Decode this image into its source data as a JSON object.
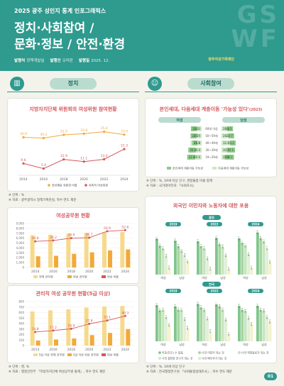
{
  "header": {
    "superscript": "2025 광주 성인지 통계 인포그래픽스",
    "title_line1": "정치·사회참여 /",
    "title_line2": "문화·정보 / 안전·환경",
    "meta": [
      {
        "label": "발행처",
        "value": "정책개발실"
      },
      {
        "label": "발행인",
        "value": "오미란"
      },
      {
        "label": "발행일",
        "value": "2025. 12."
      }
    ],
    "logo_text": "광주여성가족재단",
    "deco_letters": "G S W F"
  },
  "sections": {
    "left_label": "정치",
    "right_label": "사회참여",
    "left_icon": "building-icon",
    "right_icon": "people-icon"
  },
  "colors": {
    "teal": "#2f9a8e",
    "orange": "#f2a93b",
    "red": "#d4585b",
    "green": "#4caf7d"
  },
  "chart_local": {
    "title": "지방자치단체 위원회의 여성위원 참여현황",
    "legend": [
      "양성평등 위원회 비율",
      "위촉직 여성위원"
    ],
    "unit_note": "단위 : %",
    "source_note": "자료 : 광주광역시 정책기획관실, 학수 연도 재분",
    "chart_data": {
      "type": "line",
      "categories": [
        "2014",
        "2016",
        "2018",
        "2020",
        "2022",
        "2024"
      ],
      "series": [
        {
          "name": "양성평등 위원회 비율",
          "values": [
            30.9,
            30.2,
            32.9,
            33.8,
            35.4,
            33.0
          ]
        },
        {
          "name": "위촉직 여성위원",
          "values": [
            9.6,
            5.4,
            12.9,
            11.1,
            13.0,
            21.3
          ]
        }
      ],
      "ylim": [
        0,
        45
      ]
    }
  },
  "chart_officials": {
    "title": "여성공무원 현황",
    "legend": [
      "전체 공무원",
      "여성 공무원",
      "여성 비율"
    ],
    "chart_data": {
      "type": "bar",
      "categories": [
        "2014",
        "2016",
        "2018",
        "2020",
        "2022",
        "2024"
      ],
      "series": [
        {
          "name": "전체 공무원",
          "values": [
            6600,
            6700,
            6900,
            7100,
            7200,
            7300
          ]
        },
        {
          "name": "여성 공무원",
          "values": [
            2300,
            2400,
            2800,
            3100,
            3500,
            3700
          ]
        },
        {
          "name": "여성 비율",
          "values": [
            34.8,
            36.2,
            39.9,
            40.7,
            50.9,
            52.6
          ]
        }
      ],
      "ylim": [
        0,
        9000
      ],
      "yticks": [
        "0",
        "1,000",
        "2,000",
        "3,000",
        "4,000",
        "5,000",
        "6,000",
        "7,000",
        "8,000",
        "9,000"
      ]
    }
  },
  "chart_managers": {
    "title": "관리직 여성 공무원 현황(5급 이상)",
    "legend": [
      "5급 이상 전체 공무원",
      "5급 이상 여성 공무원",
      "여성 비율"
    ],
    "unit_note": "단위 : 명, %",
    "source_note": "자료 : 행정안전부 「지방자치단체 여성공무원 통계」, 학수 연도 재분",
    "chart_data": {
      "type": "bar",
      "categories": [
        "2014",
        "2016",
        "2018",
        "2020",
        "2022",
        "2024"
      ],
      "series": [
        {
          "name": "5급 이상 전체 공무원",
          "values": [
            620,
            640,
            660,
            690,
            710,
            720
          ]
        },
        {
          "name": "5급 이상 여성 공무원",
          "values": [
            90,
            110,
            130,
            190,
            230,
            300
          ]
        },
        {
          "name": "여성 비율",
          "values": [
            14.8,
            17.2,
            19.9,
            27.8,
            33.1,
            40.3
          ]
        }
      ],
      "ylim": [
        0,
        800
      ],
      "yticks": [
        "0",
        "100",
        "200",
        "300",
        "400",
        "500",
        "600",
        "700",
        "800"
      ]
    }
  },
  "chart_mobility": {
    "title": "본인세대, 다음세대 계층이동 '가능성 있다'",
    "title_suffix": "(2023)",
    "group_labels": [
      "여성",
      "남성"
    ],
    "age_labels": [
      "60대 이상",
      "50~59세",
      "40~49세",
      "30~39세",
      "19~29세"
    ],
    "legend": [
      "본인세대 계층이동 가능성",
      "다음세대 계층이동 가능성"
    ],
    "unit_note": "단위 : %, 19세 이상 인구, 경청불참 비율 합계",
    "source_note": "자료 : 국가데이터처 「사회조사」",
    "chart_data": {
      "type": "bar",
      "categories": [
        "60대 이상",
        "50~59세",
        "40~49세",
        "30~39세",
        "19~29세"
      ],
      "series": [
        {
          "name": "여성 본인세대",
          "values": [
            24.3,
            24.7,
            21.3,
            30.2,
            32.8
          ]
        },
        {
          "name": "여성 다음세대",
          "values": [
            24.3,
            25.9,
            25.0,
            30.0,
            30.6
          ]
        },
        {
          "name": "남성 본인세대",
          "values": [
            24.3,
            22.7,
            23.2,
            34.1,
            38.1
          ]
        },
        {
          "name": "남성 다음세대",
          "values": [
            26.0,
            28.7,
            32.0,
            30.7,
            28.2
          ]
        }
      ]
    }
  },
  "chart_migrants": {
    "title": "외국인 이민자와 노동자에 대한 포용",
    "panels": [
      {
        "region": "광주",
        "years": [
          "2019",
          "2022",
          "2024"
        ]
      },
      {
        "region": "전국",
        "years": [
          "2019",
          "2022",
          "2024"
        ]
      }
    ],
    "x_labels": [
      "여성",
      "남성"
    ],
    "legend": [
      "이웃(친구) 수 없음",
      "나의 이웃이 되는 것",
      "나의 직장동료가 되는 것",
      "나의 절친한 친구가 되는 것",
      "나의 배우자가 되는 것"
    ],
    "unit_note": "단위 : %, 19세 이상 인구",
    "source_note": "자료 : 한국행정연구원 「사회통합실태조사」, 학수 연도 재분",
    "chart_data": {
      "type": "bar",
      "series": [
        {
          "name": "광주 2019 여성",
          "values": [
            65.1,
            52.2,
            47.3,
            33.4,
            12.4
          ]
        },
        {
          "name": "광주 2019 남성",
          "values": [
            61.4,
            51.4,
            43.1,
            35.2,
            23.7
          ]
        },
        {
          "name": "광주 2022 여성",
          "values": [
            60.3,
            51.2,
            47.4,
            29.0,
            10.4
          ]
        },
        {
          "name": "광주 2022 남성",
          "values": [
            66.4,
            55.0,
            50.6,
            35.0,
            10.0
          ]
        },
        {
          "name": "광주 2024 여성",
          "values": [
            65.7,
            57.7,
            52.7,
            36.5,
            12.0
          ]
        },
        {
          "name": "광주 2024 남성",
          "values": [
            76.4,
            65.8,
            60.1,
            47.7,
            23.1
          ]
        },
        {
          "name": "전국 2019 여성",
          "values": [
            65.5,
            56.0,
            57.3,
            43.3,
            29.7
          ]
        },
        {
          "name": "전국 2019 남성",
          "values": [
            63.3,
            57.3,
            57.1,
            40.2,
            23.8
          ]
        },
        {
          "name": "전국 2022 여성",
          "values": [
            67.8,
            61.3,
            56.5,
            41.0,
            17.8
          ]
        },
        {
          "name": "전국 2022 남성",
          "values": [
            66.7,
            63.4,
            57.2,
            39.0,
            12.7
          ]
        },
        {
          "name": "전국 2024 여성",
          "values": [
            63.9,
            56.8,
            54.8,
            42.2,
            30.9
          ]
        },
        {
          "name": "전국 2024 남성",
          "values": [
            64.3,
            57.2,
            55.6,
            43.5,
            35.4
          ]
        }
      ]
    }
  },
  "page_number": "01"
}
